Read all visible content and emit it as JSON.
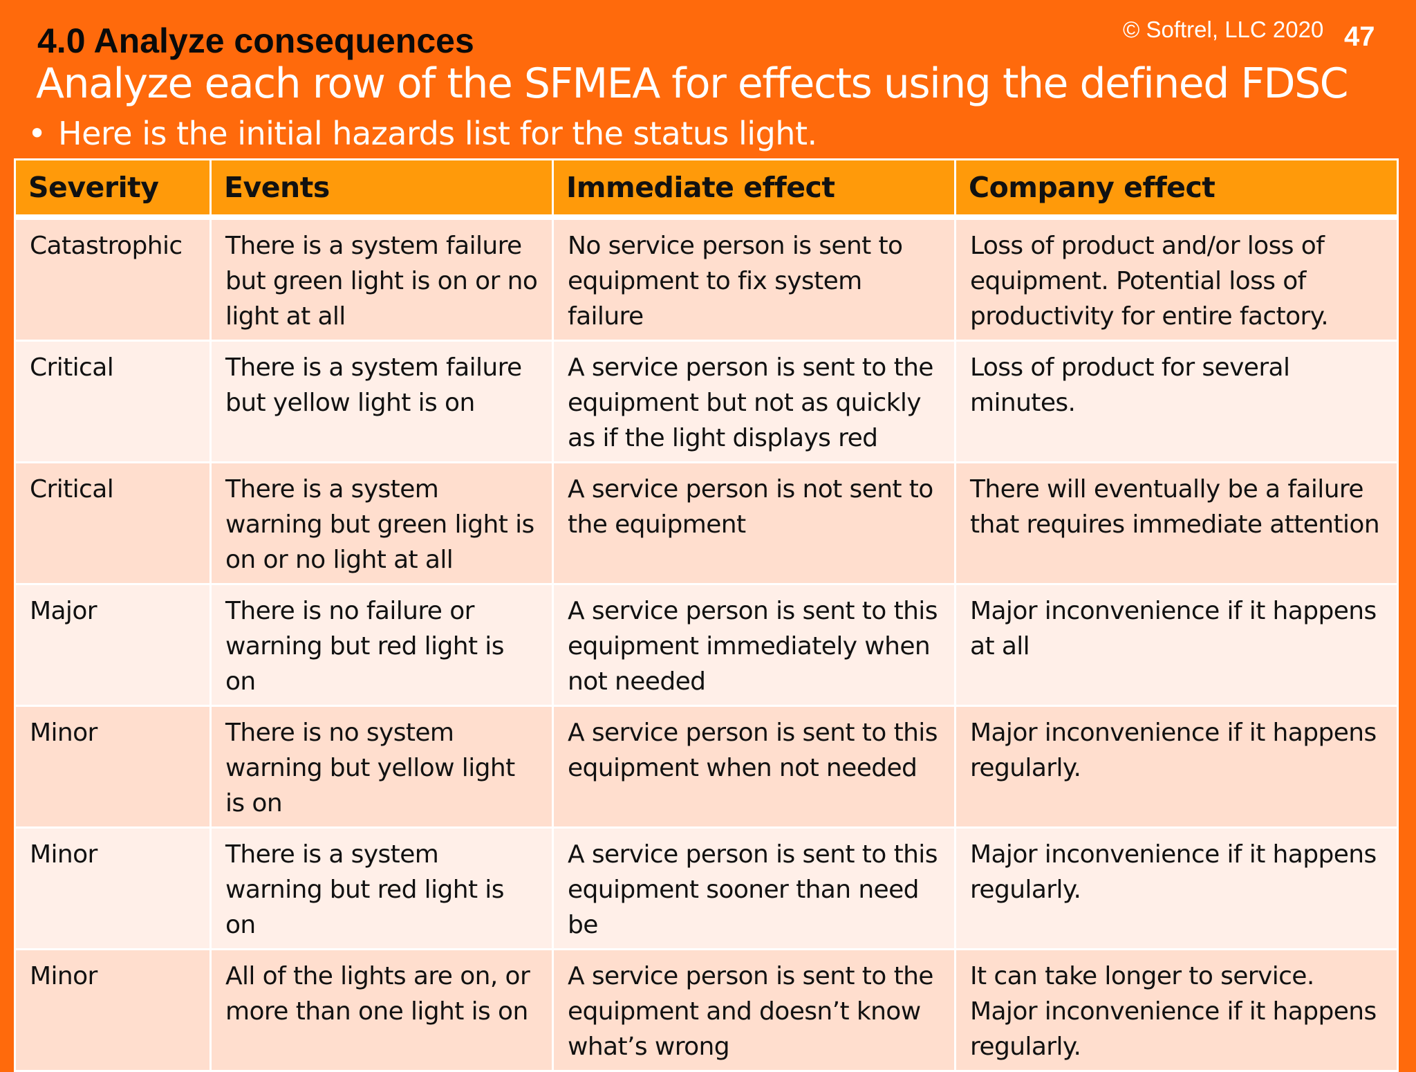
{
  "slide": {
    "section_title": "4.0 Analyze consequences",
    "copyright": "© Softrel, LLC 2020",
    "page_number": "47",
    "subtitle": "Analyze each row of the SFMEA for effects using the defined FDSC",
    "bullet_symbol": "•",
    "bullet": "Here is the initial hazards list for the status light."
  },
  "colors": {
    "background": "#FF6A0C",
    "header_row": "#FF9A0A",
    "row_dark": "#FFDECE",
    "row_light": "#FFEFE8"
  },
  "table": {
    "headers": [
      "Severity",
      "Events",
      "Immediate effect",
      "Company effect"
    ],
    "rows": [
      {
        "severity": "Catastrophic",
        "events": "There is a system failure but green light is on or no light at all",
        "immediate": "No service person is sent to equipment to fix system failure",
        "company": "Loss of product and/or loss of equipment.  Potential loss of productivity for entire factory."
      },
      {
        "severity": "Critical",
        "events": "There is a system failure but yellow light is on",
        "immediate": "A service person is sent to the equipment but not as quickly as if the light displays red",
        "company": "Loss of product for several minutes."
      },
      {
        "severity": "Critical",
        "events": "There is a system warning but green light is on or no light at all",
        "immediate": "A service person is not sent to the equipment",
        "company": "There will eventually be a failure that requires immediate attention"
      },
      {
        "severity": "Major",
        "events": "There is no failure or warning but red light is on",
        "immediate": "A service person is sent to this equipment immediately when not needed",
        "company": "Major inconvenience if it happens at all"
      },
      {
        "severity": "Minor",
        "events": "There is no system warning but yellow light is on",
        "immediate": "A service person is sent to this equipment when not needed",
        "company": "Major inconvenience if it happens regularly."
      },
      {
        "severity": "Minor",
        "events": "There is a system warning but red light is on",
        "immediate": "A service person is sent to this equipment sooner than need be",
        "company": "Major inconvenience if it happens regularly."
      },
      {
        "severity": "Minor",
        "events": "All of the lights are on, or more than one light is on",
        "immediate": "A service person is sent to the equipment and doesn’t know what’s wrong",
        "company": "It can take longer to service.  Major inconvenience if it happens regularly."
      }
    ]
  }
}
